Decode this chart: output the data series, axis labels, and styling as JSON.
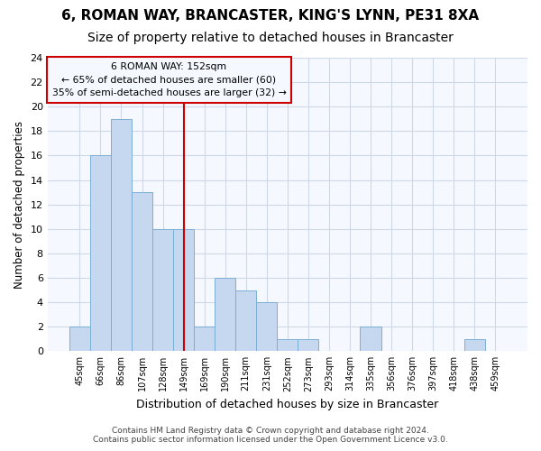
{
  "title1": "6, ROMAN WAY, BRANCASTER, KING'S LYNN, PE31 8XA",
  "title2": "Size of property relative to detached houses in Brancaster",
  "xlabel": "Distribution of detached houses by size in Brancaster",
  "ylabel": "Number of detached properties",
  "bar_labels": [
    "45sqm",
    "66sqm",
    "86sqm",
    "107sqm",
    "128sqm",
    "149sqm",
    "169sqm",
    "190sqm",
    "211sqm",
    "231sqm",
    "252sqm",
    "273sqm",
    "293sqm",
    "314sqm",
    "335sqm",
    "356sqm",
    "376sqm",
    "397sqm",
    "418sqm",
    "438sqm",
    "459sqm"
  ],
  "bar_values": [
    2,
    16,
    19,
    13,
    10,
    10,
    2,
    6,
    5,
    4,
    1,
    1,
    0,
    0,
    2,
    0,
    0,
    0,
    0,
    1,
    0
  ],
  "bar_color": "#c5d8f0",
  "bar_edge_color": "#7bafd4",
  "subject_label": "6 ROMAN WAY: 152sqm",
  "annotation_line1": "← 65% of detached houses are smaller (60)",
  "annotation_line2": "35% of semi-detached houses are larger (32) →",
  "vline_color": "#cc0000",
  "vline_bin_index": 5,
  "ylim": [
    0,
    24
  ],
  "yticks": [
    0,
    2,
    4,
    6,
    8,
    10,
    12,
    14,
    16,
    18,
    20,
    22,
    24
  ],
  "footer1": "Contains HM Land Registry data © Crown copyright and database right 2024.",
  "footer2": "Contains public sector information licensed under the Open Government Licence v3.0.",
  "bg_color": "#ffffff",
  "plot_bg_color": "#f5f8ff",
  "grid_color": "#d0d8e8",
  "annotation_box_color": "#cc0000",
  "title1_fontsize": 11,
  "title2_fontsize": 10
}
